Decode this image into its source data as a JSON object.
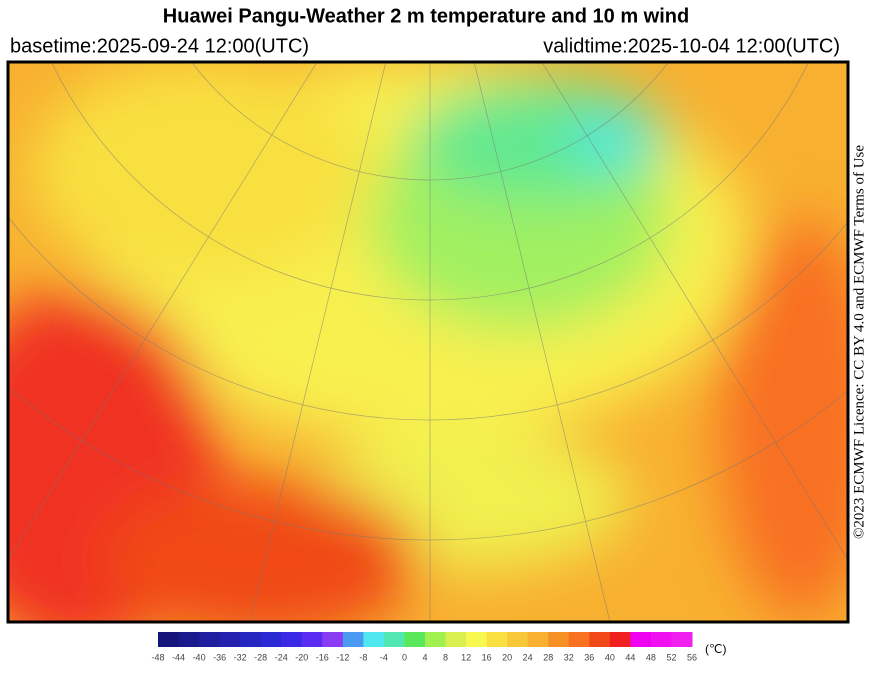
{
  "header": {
    "title": "Huawei Pangu-Weather  2 m temperature and 10 m wind",
    "basetime": "basetime:2025-09-24 12:00(UTC)",
    "validtime": "validtime:2025-10-04 12:00(UTC)"
  },
  "licence": "©2023 ECMWF Licence: CC BY 4.0 and ECMWF Terms of Use",
  "colorbar": {
    "ticks": [
      -48,
      -44,
      -40,
      -36,
      -32,
      -28,
      -24,
      -20,
      -16,
      -12,
      -8,
      -4,
      0,
      4,
      8,
      12,
      16,
      20,
      24,
      28,
      32,
      36,
      40,
      44,
      48,
      52,
      56
    ],
    "colors": [
      "#14147a",
      "#1a1a8c",
      "#1e1e9e",
      "#2222ae",
      "#2626c0",
      "#2a2ad4",
      "#3a2ae6",
      "#5a2cf2",
      "#8a3cf2",
      "#4a9af2",
      "#50e8f0",
      "#50e8b0",
      "#5ae85a",
      "#a0f050",
      "#d8f050",
      "#f8f850",
      "#f8e040",
      "#f8c838",
      "#f8b030",
      "#f89028",
      "#f87020",
      "#f04818",
      "#f02020",
      "#f000f0",
      "#f010f0",
      "#f020f0"
    ],
    "unit": "(℃)"
  }
}
